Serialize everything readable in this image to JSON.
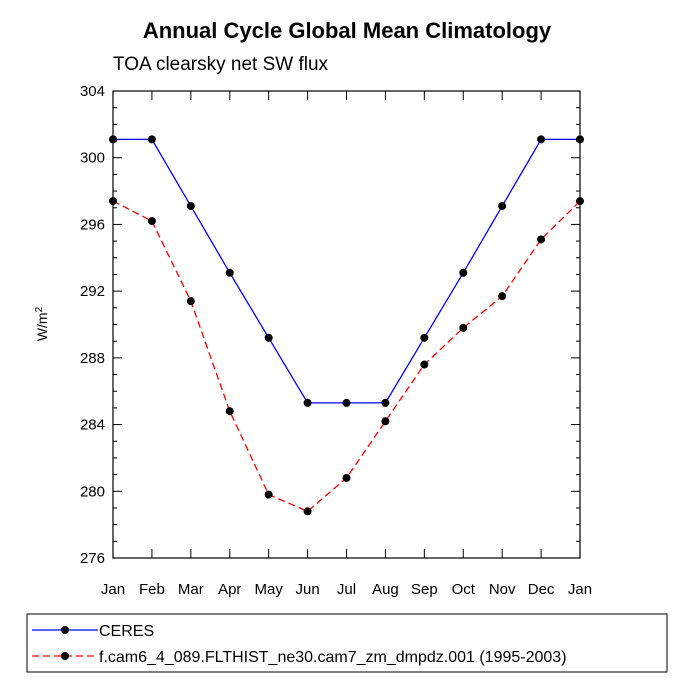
{
  "chart_data": {
    "type": "line",
    "title": "Annual Cycle Global Mean Climatology",
    "subtitle": "TOA clearsky net SW flux",
    "xlabel": "",
    "ylabel": "W/m",
    "ylabel_sup": "2",
    "categories": [
      "Jan",
      "Feb",
      "Mar",
      "Apr",
      "May",
      "Jun",
      "Jul",
      "Aug",
      "Sep",
      "Oct",
      "Nov",
      "Dec",
      "Jan"
    ],
    "ylim": [
      276,
      304
    ],
    "yticks": [
      276,
      280,
      284,
      288,
      292,
      296,
      300,
      304
    ],
    "grid": false,
    "legend_position": "bottom",
    "series": [
      {
        "name": "CERES",
        "color": "#0000ff",
        "dash": "solid",
        "marker": "filled-circle",
        "values": [
          301.1,
          301.1,
          297.1,
          293.1,
          289.2,
          285.3,
          285.3,
          285.3,
          289.2,
          293.1,
          297.1,
          301.1,
          301.1
        ]
      },
      {
        "name": "f.cam6_4_089.FLTHIST_ne30.cam7_zm_dmpdz.001 (1995-2003)",
        "color": "#ff0000",
        "dash": "dashed",
        "marker": "filled-circle",
        "values": [
          297.4,
          296.2,
          291.4,
          284.8,
          279.8,
          278.8,
          280.8,
          284.2,
          287.6,
          289.8,
          291.7,
          295.1,
          297.4
        ]
      }
    ]
  }
}
